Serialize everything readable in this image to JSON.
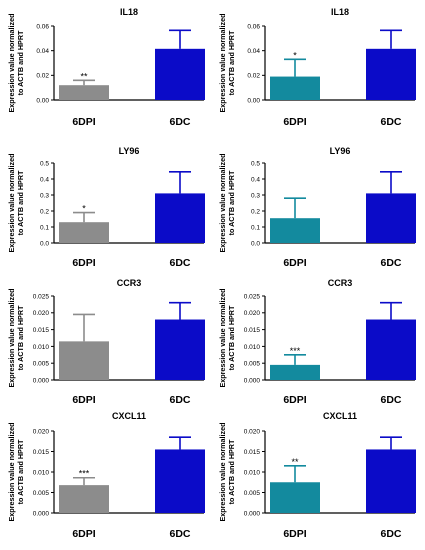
{
  "ylabel_line1": "Expression value normalized",
  "ylabel_line2": "to ACTB and HPRT",
  "colors": {
    "gray": "#8c8c8c",
    "teal": "#138a9e",
    "blue": "#0b0bc8",
    "axis": "#000000"
  },
  "chart_data": [
    {
      "type": "bar",
      "title": "IL18",
      "categories": [
        "6DPI",
        "6DC"
      ],
      "values": [
        0.012,
        0.0415
      ],
      "errors": [
        0.004,
        0.015
      ],
      "ylim": [
        0,
        0.06
      ],
      "ticks": [
        "0.00",
        "0.02",
        "0.04",
        "0.06"
      ],
      "significance": [
        "**",
        ""
      ],
      "bar_colors": [
        "gray",
        "blue"
      ],
      "ylabel": "Expression value normalized to ACTB and HPRT"
    },
    {
      "type": "bar",
      "title": "IL18",
      "categories": [
        "6DPI",
        "6DC"
      ],
      "values": [
        0.019,
        0.0415
      ],
      "errors": [
        0.014,
        0.015
      ],
      "ylim": [
        0,
        0.06
      ],
      "ticks": [
        "0.00",
        "0.02",
        "0.04",
        "0.06"
      ],
      "significance": [
        "*",
        ""
      ],
      "bar_colors": [
        "teal",
        "blue"
      ],
      "ylabel": "Expression value normalized to ACTB and HPRT"
    },
    {
      "type": "bar",
      "title": "LY96",
      "categories": [
        "6DPI",
        "6DC"
      ],
      "values": [
        0.13,
        0.31
      ],
      "errors": [
        0.06,
        0.135
      ],
      "ylim": [
        0,
        0.5
      ],
      "ticks": [
        "0.0",
        "0.1",
        "0.2",
        "0.3",
        "0.4",
        "0.5"
      ],
      "significance": [
        "*",
        ""
      ],
      "bar_colors": [
        "gray",
        "blue"
      ],
      "ylabel": "Expression value normalized to ACTB and HPRT"
    },
    {
      "type": "bar",
      "title": "LY96",
      "categories": [
        "6DPI",
        "6DC"
      ],
      "values": [
        0.155,
        0.31
      ],
      "errors": [
        0.125,
        0.135
      ],
      "ylim": [
        0,
        0.5
      ],
      "ticks": [
        "0.0",
        "0.1",
        "0.2",
        "0.3",
        "0.4",
        "0.5"
      ],
      "significance": [
        "",
        ""
      ],
      "bar_colors": [
        "teal",
        "blue"
      ],
      "ylabel": "Expression value normalized to ACTB and HPRT"
    },
    {
      "type": "bar",
      "title": "CCR3",
      "categories": [
        "6DPI",
        "6DC"
      ],
      "values": [
        0.0115,
        0.018
      ],
      "errors": [
        0.008,
        0.005
      ],
      "ylim": [
        0,
        0.025
      ],
      "ticks": [
        "0.000",
        "0.005",
        "0.010",
        "0.015",
        "0.020",
        "0.025"
      ],
      "significance": [
        "",
        ""
      ],
      "bar_colors": [
        "gray",
        "blue"
      ],
      "ylabel": "Expression value normalized to ACTB and HPRT"
    },
    {
      "type": "bar",
      "title": "CCR3",
      "categories": [
        "6DPI",
        "6DC"
      ],
      "values": [
        0.0045,
        0.018
      ],
      "errors": [
        0.003,
        0.005
      ],
      "ylim": [
        0,
        0.025
      ],
      "ticks": [
        "0.000",
        "0.005",
        "0.010",
        "0.015",
        "0.020",
        "0.025"
      ],
      "significance": [
        "***",
        ""
      ],
      "bar_colors": [
        "teal",
        "blue"
      ],
      "ylabel": "Expression value normalized to ACTB and HPRT"
    },
    {
      "type": "bar",
      "title": "CXCL11",
      "categories": [
        "6DPI",
        "6DC"
      ],
      "values": [
        0.0068,
        0.0155
      ],
      "errors": [
        0.0018,
        0.003
      ],
      "ylim": [
        0,
        0.02
      ],
      "ticks": [
        "0.000",
        "0.005",
        "0.010",
        "0.015",
        "0.020"
      ],
      "significance": [
        "***",
        ""
      ],
      "bar_colors": [
        "gray",
        "blue"
      ],
      "ylabel": "Expression value normalized to ACTB and HPRT"
    },
    {
      "type": "bar",
      "title": "CXCL11",
      "categories": [
        "6DPI",
        "6DC"
      ],
      "values": [
        0.0075,
        0.0155
      ],
      "errors": [
        0.004,
        0.003
      ],
      "ylim": [
        0,
        0.02
      ],
      "ticks": [
        "0.000",
        "0.005",
        "0.010",
        "0.015",
        "0.020"
      ],
      "significance": [
        "**",
        ""
      ],
      "bar_colors": [
        "teal",
        "blue"
      ],
      "ylabel": "Expression value normalized to ACTB and HPRT"
    }
  ]
}
